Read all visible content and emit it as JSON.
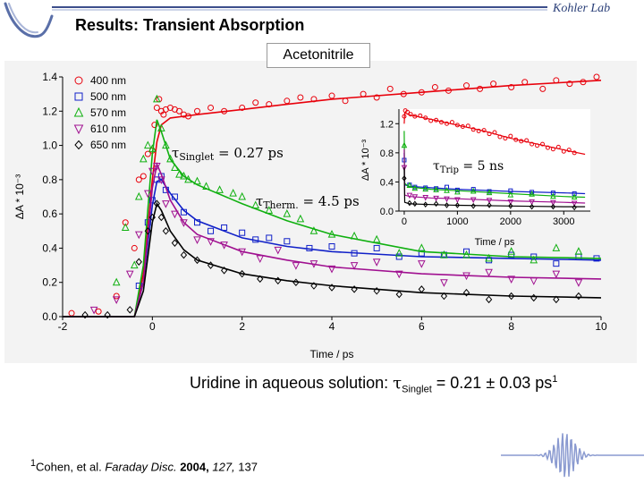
{
  "slide": {
    "title": "Results: Transient Absorption",
    "lab": "Kohler Lab",
    "caption": {
      "prefix": "Uridine in aqueous solution: ",
      "tau": "τ",
      "sub": "Singlet",
      "value": " = 0.21 ± 0.03 ps",
      "sup": "1"
    },
    "reference": {
      "marker": "1",
      "authors": "Cohen, et al. ",
      "journal": "Faraday Disc.",
      "year": "2004,",
      "volume": "127,",
      "pages": "137"
    }
  },
  "chart_data": [
    {
      "type": "scatter",
      "title": "Acetonitrile",
      "xlabel": "Time / ps",
      "ylabel": "ΔA * 10⁻³",
      "xlim": [
        -2,
        10
      ],
      "ylim": [
        0,
        1.4
      ],
      "xticks": [
        "-2",
        "0",
        "2",
        "4",
        "6",
        "8",
        "10"
      ],
      "yticks": [
        "0.0",
        "0.2",
        "0.4",
        "0.6",
        "0.8",
        "1.0",
        "1.2",
        "1.4"
      ],
      "legend_position": "top-left",
      "annotations": [
        {
          "tau": "τ",
          "sub": "Singlet",
          "text": " = 0.27 ps"
        },
        {
          "tau": "τ",
          "sub": "Therm.",
          "text": " = 4.5 ps"
        }
      ],
      "series": [
        {
          "name": "400 nm",
          "color": "#e8000b",
          "marker": "circle",
          "fit": {
            "x": [
              -2,
              -0.4,
              -0.2,
              0.0,
              0.1,
              0.2,
              0.4,
              0.7,
              1.0,
              2.0,
              3.0,
              4.0,
              6.0,
              8.0,
              10.0
            ],
            "y": [
              0,
              0,
              0.25,
              0.8,
              1.02,
              1.12,
              1.16,
              1.17,
              1.18,
              1.21,
              1.24,
              1.27,
              1.31,
              1.35,
              1.38
            ]
          },
          "points": {
            "x": [
              -1.8,
              -1.2,
              -0.8,
              -0.6,
              -0.4,
              -0.3,
              -0.2,
              -0.1,
              0.0,
              0.05,
              0.1,
              0.15,
              0.2,
              0.25,
              0.3,
              0.4,
              0.5,
              0.6,
              0.7,
              0.8,
              1.0,
              1.3,
              1.6,
              2.0,
              2.3,
              2.6,
              3.0,
              3.3,
              3.6,
              4.0,
              4.3,
              4.7,
              5.0,
              5.3,
              5.6,
              6.0,
              6.3,
              6.6,
              7.0,
              7.3,
              7.6,
              8.0,
              8.3,
              8.7,
              9.0,
              9.3,
              9.6,
              9.9
            ],
            "y": [
              0.02,
              0.03,
              0.12,
              0.55,
              0.4,
              0.8,
              0.82,
              0.95,
              0.97,
              1.12,
              1.22,
              1.27,
              1.2,
              1.18,
              1.21,
              1.22,
              1.21,
              1.2,
              1.18,
              1.17,
              1.2,
              1.22,
              1.2,
              1.22,
              1.25,
              1.24,
              1.26,
              1.28,
              1.27,
              1.29,
              1.26,
              1.3,
              1.28,
              1.33,
              1.3,
              1.31,
              1.34,
              1.32,
              1.35,
              1.33,
              1.36,
              1.34,
              1.37,
              1.33,
              1.38,
              1.36,
              1.37,
              1.4
            ]
          }
        },
        {
          "name": "500 nm",
          "color": "#1020c8",
          "marker": "square",
          "fit": {
            "x": [
              -2,
              -0.4,
              -0.2,
              0.0,
              0.1,
              0.2,
              0.4,
              0.7,
              1.0,
              2.0,
              3.0,
              4.0,
              6.0,
              8.0,
              10.0
            ],
            "y": [
              0,
              0,
              0.2,
              0.65,
              0.79,
              0.8,
              0.72,
              0.62,
              0.56,
              0.46,
              0.41,
              0.38,
              0.35,
              0.34,
              0.33
            ]
          },
          "points": {
            "x": [
              -0.3,
              -0.1,
              0.0,
              0.1,
              0.2,
              0.3,
              0.5,
              0.7,
              1.0,
              1.3,
              1.6,
              2.0,
              2.3,
              2.6,
              3.0,
              3.5,
              4.0,
              4.5,
              5.0,
              5.5,
              6.0,
              6.5,
              7.0,
              7.5,
              8.0,
              8.5,
              9.0,
              9.5,
              9.9
            ],
            "y": [
              0.18,
              0.55,
              0.68,
              0.8,
              0.82,
              0.74,
              0.7,
              0.61,
              0.55,
              0.5,
              0.52,
              0.49,
              0.45,
              0.46,
              0.44,
              0.4,
              0.41,
              0.37,
              0.4,
              0.35,
              0.37,
              0.36,
              0.38,
              0.33,
              0.36,
              0.35,
              0.31,
              0.35,
              0.34
            ]
          }
        },
        {
          "name": "570 nm",
          "color": "#10b010",
          "marker": "triangle-up",
          "fit": {
            "x": [
              -2,
              -0.4,
              -0.2,
              0.0,
              0.1,
              0.2,
              0.4,
              0.7,
              1.0,
              2.0,
              3.0,
              4.0,
              6.0,
              8.0,
              10.0
            ],
            "y": [
              0,
              0,
              0.3,
              0.95,
              1.15,
              1.08,
              0.92,
              0.82,
              0.77,
              0.66,
              0.56,
              0.48,
              0.38,
              0.35,
              0.34
            ]
          },
          "points": {
            "x": [
              -0.8,
              -0.6,
              -0.4,
              -0.3,
              -0.2,
              -0.1,
              0.0,
              0.1,
              0.2,
              0.3,
              0.4,
              0.5,
              0.6,
              0.7,
              0.8,
              1.0,
              1.2,
              1.5,
              1.8,
              2.0,
              2.3,
              2.6,
              3.0,
              3.3,
              3.6,
              4.0,
              4.5,
              5.0,
              5.5,
              6.0,
              6.5,
              7.0,
              7.5,
              8.0,
              8.5,
              9.0,
              9.5
            ],
            "y": [
              0.2,
              0.52,
              0.3,
              0.7,
              0.92,
              1.0,
              0.98,
              1.27,
              1.1,
              1.0,
              0.92,
              0.87,
              0.83,
              0.82,
              0.8,
              0.79,
              0.76,
              0.74,
              0.72,
              0.7,
              0.65,
              0.62,
              0.6,
              0.57,
              0.5,
              0.48,
              0.47,
              0.45,
              0.37,
              0.4,
              0.36,
              0.36,
              0.34,
              0.38,
              0.33,
              0.4,
              0.38
            ]
          }
        },
        {
          "name": "610 nm",
          "color": "#a01090",
          "marker": "triangle-down",
          "fit": {
            "x": [
              -2,
              -0.4,
              -0.2,
              0.0,
              0.1,
              0.2,
              0.4,
              0.7,
              1.0,
              2.0,
              3.0,
              4.0,
              6.0,
              8.0,
              10.0
            ],
            "y": [
              0,
              0,
              0.2,
              0.75,
              0.89,
              0.83,
              0.68,
              0.55,
              0.48,
              0.38,
              0.33,
              0.29,
              0.25,
              0.23,
              0.22
            ]
          },
          "points": {
            "x": [
              -1.3,
              -0.8,
              -0.5,
              -0.3,
              -0.1,
              0.0,
              0.1,
              0.2,
              0.3,
              0.5,
              0.7,
              1.0,
              1.3,
              1.6,
              2.0,
              2.4,
              2.8,
              3.2,
              3.6,
              4.0,
              4.5,
              5.0,
              5.5,
              6.0,
              6.5,
              7.0,
              7.5,
              8.0,
              8.5,
              9.0,
              9.5
            ],
            "y": [
              0.04,
              0.1,
              0.25,
              0.48,
              0.72,
              0.85,
              0.88,
              0.8,
              0.66,
              0.6,
              0.55,
              0.45,
              0.44,
              0.42,
              0.38,
              0.34,
              0.39,
              0.3,
              0.31,
              0.28,
              0.3,
              0.32,
              0.25,
              0.31,
              0.2,
              0.24,
              0.26,
              0.22,
              0.21,
              0.25,
              0.2
            ]
          }
        },
        {
          "name": "650 nm",
          "color": "#000000",
          "marker": "diamond",
          "fit": {
            "x": [
              -2,
              -0.4,
              -0.2,
              0.0,
              0.1,
              0.2,
              0.4,
              0.7,
              1.0,
              2.0,
              3.0,
              4.0,
              6.0,
              8.0,
              10.0
            ],
            "y": [
              0,
              0,
              0.15,
              0.55,
              0.66,
              0.62,
              0.5,
              0.39,
              0.33,
              0.25,
              0.21,
              0.18,
              0.14,
              0.12,
              0.11
            ]
          },
          "points": {
            "x": [
              -1.5,
              -1.0,
              -0.5,
              -0.3,
              -0.1,
              0.0,
              0.1,
              0.2,
              0.3,
              0.5,
              0.7,
              1.0,
              1.3,
              1.6,
              2.0,
              2.4,
              2.8,
              3.2,
              3.6,
              4.0,
              4.5,
              5.0,
              5.5,
              6.0,
              6.5,
              7.0,
              7.5,
              8.0,
              8.5,
              9.0,
              9.5
            ],
            "y": [
              0.01,
              0.01,
              0.04,
              0.32,
              0.5,
              0.58,
              0.66,
              0.58,
              0.5,
              0.43,
              0.36,
              0.33,
              0.3,
              0.27,
              0.25,
              0.22,
              0.21,
              0.2,
              0.18,
              0.17,
              0.16,
              0.15,
              0.13,
              0.16,
              0.12,
              0.14,
              0.1,
              0.12,
              0.11,
              0.1,
              0.12
            ]
          }
        }
      ]
    },
    {
      "type": "scatter",
      "title": "",
      "xlabel": "Time / ps",
      "ylabel": "ΔA * 10⁻³",
      "xlim": [
        -100,
        3500
      ],
      "ylim": [
        0,
        1.4
      ],
      "xticks": [
        "0",
        "1000",
        "2000",
        "3000"
      ],
      "yticks": [
        "0.0",
        "0.4",
        "0.8",
        "1.2"
      ],
      "annotations": [
        {
          "tau": "τ",
          "sub": "Trip",
          "text": " = 5 ns"
        }
      ],
      "series": [
        {
          "name": "400 nm",
          "color": "#e8000b",
          "marker": "circle",
          "fit": {
            "x": [
              0,
              10,
              100,
              500,
              1000,
              1500,
              2000,
              2500,
              3000,
              3400
            ],
            "y": [
              1.2,
              1.35,
              1.32,
              1.26,
              1.18,
              1.1,
              1.0,
              0.92,
              0.84,
              0.78
            ]
          },
          "points": {
            "x": [
              0,
              20,
              60,
              120,
              200,
              300,
              400,
              500,
              600,
              700,
              800,
              900,
              1000,
              1100,
              1200,
              1300,
              1400,
              1500,
              1600,
              1700,
              1800,
              1900,
              2000,
              2100,
              2200,
              2300,
              2400,
              2500,
              2600,
              2700,
              2800,
              2900,
              3000,
              3100,
              3200
            ],
            "y": [
              1.3,
              1.38,
              1.36,
              1.33,
              1.3,
              1.31,
              1.28,
              1.24,
              1.25,
              1.22,
              1.2,
              1.22,
              1.18,
              1.16,
              1.17,
              1.12,
              1.1,
              1.11,
              1.06,
              1.08,
              1.02,
              1.0,
              1.03,
              0.98,
              0.96,
              0.97,
              0.92,
              0.9,
              0.92,
              0.87,
              0.85,
              0.88,
              0.82,
              0.84,
              0.8
            ]
          }
        },
        {
          "name": "500 nm",
          "color": "#1020c8",
          "marker": "square",
          "fit": {
            "x": [
              0,
              10,
              100,
              500,
              1000,
              2000,
              3000,
              3400
            ],
            "y": [
              0.8,
              0.36,
              0.34,
              0.32,
              0.3,
              0.27,
              0.25,
              0.24
            ]
          },
          "points": {
            "x": [
              0,
              100,
              200,
              400,
              600,
              800,
              1000,
              1300,
              1600,
              2000,
              2400,
              2800,
              3200
            ],
            "y": [
              0.7,
              0.36,
              0.33,
              0.32,
              0.31,
              0.33,
              0.29,
              0.3,
              0.27,
              0.28,
              0.26,
              0.25,
              0.24
            ]
          }
        },
        {
          "name": "570 nm",
          "color": "#10b010",
          "marker": "triangle-up",
          "fit": {
            "x": [
              0,
              10,
              100,
              500,
              1000,
              2000,
              3000,
              3400
            ],
            "y": [
              1.1,
              0.38,
              0.33,
              0.3,
              0.28,
              0.24,
              0.2,
              0.19
            ]
          },
          "points": {
            "x": [
              0,
              100,
              200,
              400,
              600,
              800,
              1000,
              1300,
              1600,
              2000,
              2400,
              2800,
              3200
            ],
            "y": [
              0.9,
              0.35,
              0.31,
              0.3,
              0.29,
              0.28,
              0.26,
              0.27,
              0.25,
              0.22,
              0.23,
              0.2,
              0.19
            ]
          }
        },
        {
          "name": "610 nm",
          "color": "#a01090",
          "marker": "triangle-down",
          "fit": {
            "x": [
              0,
              10,
              100,
              500,
              1000,
              2000,
              3000,
              3400
            ],
            "y": [
              0.85,
              0.22,
              0.2,
              0.18,
              0.17,
              0.14,
              0.12,
              0.11
            ]
          },
          "points": {
            "x": [
              0,
              100,
              200,
              400,
              600,
              800,
              1000,
              1300,
              1600,
              2000,
              2400,
              2800,
              3200
            ],
            "y": [
              0.6,
              0.22,
              0.2,
              0.19,
              0.18,
              0.17,
              0.16,
              0.16,
              0.15,
              0.13,
              0.13,
              0.12,
              0.11
            ]
          }
        },
        {
          "name": "650 nm",
          "color": "#000000",
          "marker": "diamond",
          "fit": {
            "x": [
              0,
              10,
              100,
              500,
              1000,
              2000,
              3000,
              3400
            ],
            "y": [
              0.6,
              0.12,
              0.1,
              0.09,
              0.08,
              0.07,
              0.06,
              0.06
            ]
          },
          "points": {
            "x": [
              0,
              100,
              200,
              400,
              600,
              800,
              1000,
              1300,
              1600,
              2000,
              2400,
              2800,
              3200
            ],
            "y": [
              0.45,
              0.11,
              0.1,
              0.09,
              0.1,
              0.08,
              0.08,
              0.07,
              0.08,
              0.07,
              0.06,
              0.06,
              0.05
            ]
          }
        }
      ]
    }
  ]
}
